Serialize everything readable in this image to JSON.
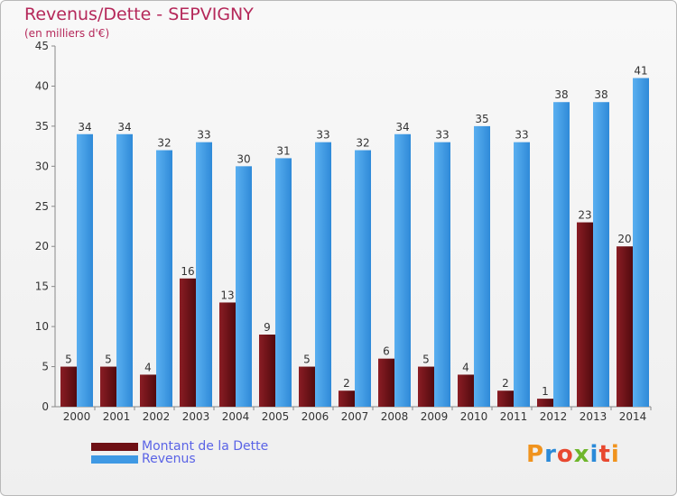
{
  "title": "Revenus/Dette - SEPVIGNY",
  "subtitle": "(en milliers d'€)",
  "brand": "Proxiti",
  "colors": {
    "debt": "#6e0f14",
    "revenue": "#3f99e4",
    "title": "#b5285a",
    "legend_text": "#5a63e6"
  },
  "legend": [
    {
      "label": "Montant de la Dette",
      "color": "#6e0f14"
    },
    {
      "label": "Revenus",
      "color": "#3f99e4"
    }
  ],
  "chart_data": {
    "type": "bar",
    "title": "Revenus/Dette - SEPVIGNY",
    "subtitle": "(en milliers d'€)",
    "categories": [
      "2000",
      "2001",
      "2002",
      "2003",
      "2004",
      "2005",
      "2006",
      "2007",
      "2008",
      "2009",
      "2010",
      "2011",
      "2012",
      "2013",
      "2014"
    ],
    "series": [
      {
        "name": "Montant de la Dette",
        "values": [
          5,
          5,
          4,
          16,
          13,
          9,
          5,
          2,
          6,
          5,
          4,
          2,
          1,
          23,
          20
        ]
      },
      {
        "name": "Revenus",
        "values": [
          34,
          34,
          32,
          33,
          30,
          31,
          33,
          32,
          34,
          33,
          35,
          33,
          38,
          38,
          41
        ]
      }
    ],
    "ylim": [
      0,
      45
    ],
    "yticks": [
      0,
      5,
      10,
      15,
      20,
      25,
      30,
      35,
      40,
      45
    ],
    "grid": false,
    "legend_position": "bottom-left"
  }
}
